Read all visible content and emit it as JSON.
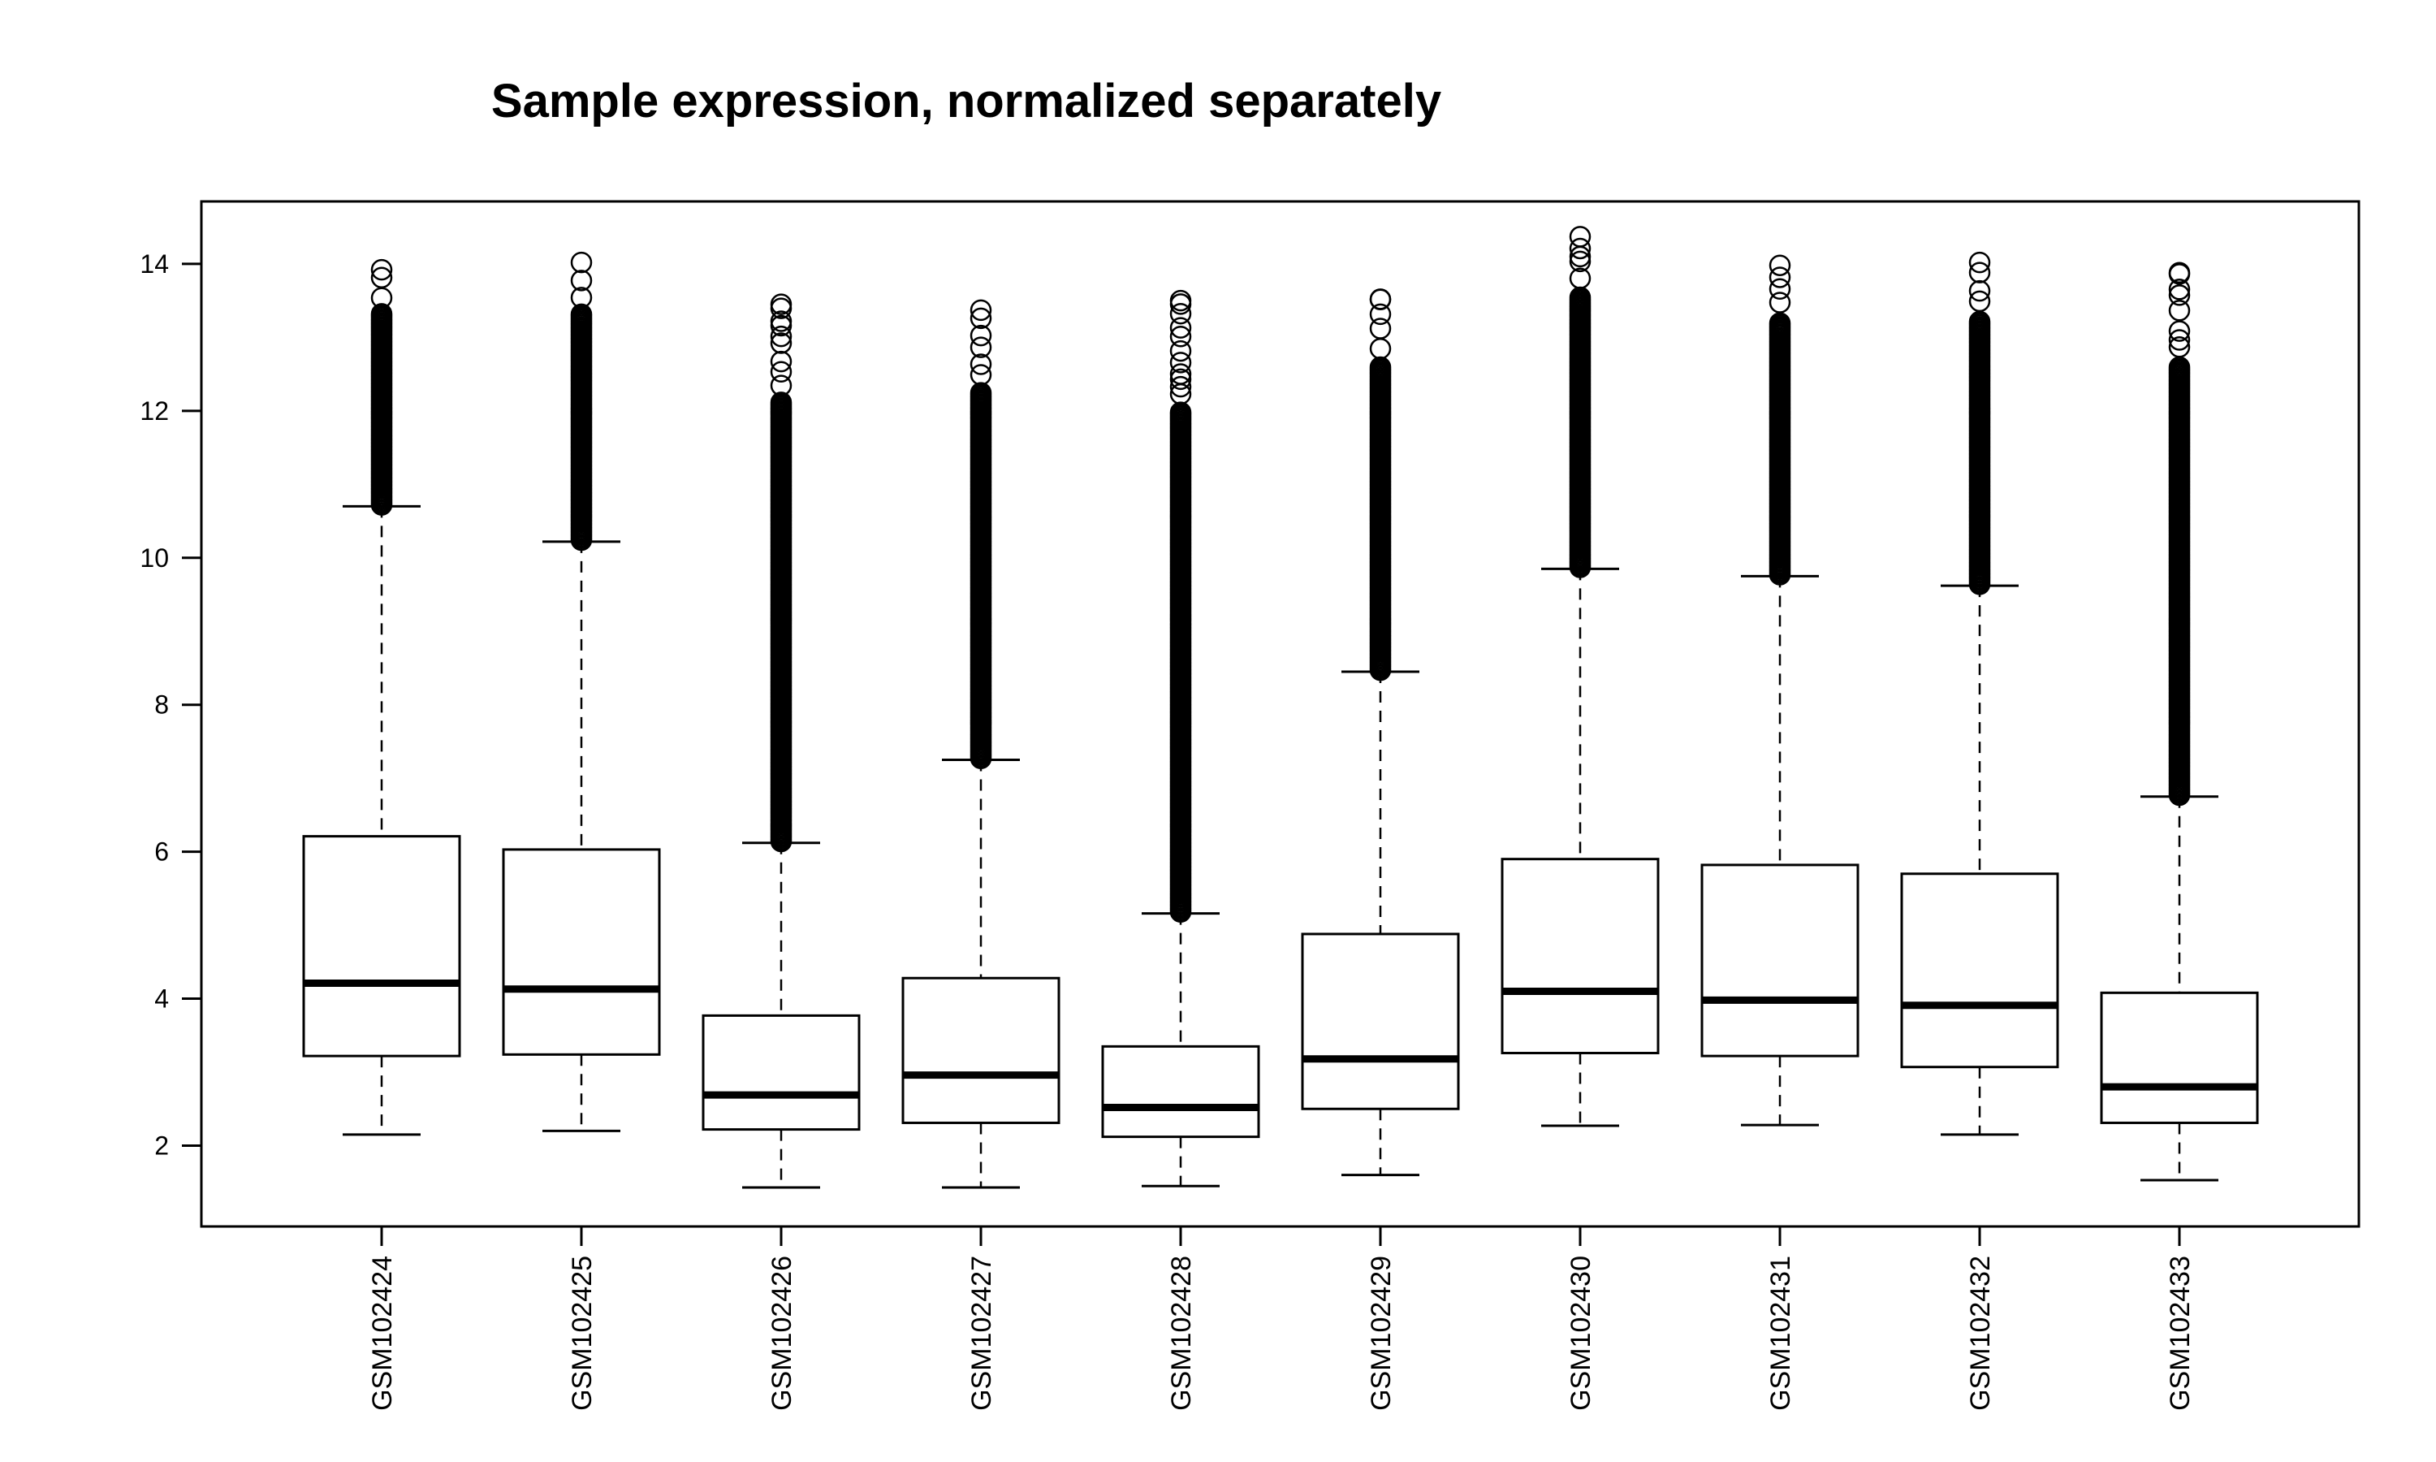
{
  "chart_data": {
    "type": "boxplot",
    "title": "Sample expression, normalized separately",
    "xlabel": "",
    "ylabel": "",
    "ylim": [
      0.9,
      14.85
    ],
    "yticks": [
      2,
      4,
      6,
      8,
      10,
      12,
      14
    ],
    "grid": false,
    "legend": "none",
    "categories": [
      "GSM102424",
      "GSM102425",
      "GSM102426",
      "GSM102427",
      "GSM102428",
      "GSM102429",
      "GSM102430",
      "GSM102431",
      "GSM102432",
      "GSM102433"
    ],
    "boxes": [
      {
        "lower_whisker": 2.15,
        "q1": 3.22,
        "median": 4.21,
        "q3": 6.21,
        "upper_whisker": 10.7,
        "outlier_max": 13.92
      },
      {
        "lower_whisker": 2.2,
        "q1": 3.24,
        "median": 4.13,
        "q3": 6.03,
        "upper_whisker": 10.22,
        "outlier_max": 14.02
      },
      {
        "lower_whisker": 1.43,
        "q1": 2.22,
        "median": 2.69,
        "q3": 3.77,
        "upper_whisker": 6.12,
        "outlier_max": 13.45
      },
      {
        "lower_whisker": 1.43,
        "q1": 2.31,
        "median": 2.96,
        "q3": 4.28,
        "upper_whisker": 7.25,
        "outlier_max": 13.37
      },
      {
        "lower_whisker": 1.45,
        "q1": 2.12,
        "median": 2.52,
        "q3": 3.35,
        "upper_whisker": 5.16,
        "outlier_max": 13.5
      },
      {
        "lower_whisker": 1.6,
        "q1": 2.5,
        "median": 3.18,
        "q3": 4.88,
        "upper_whisker": 8.45,
        "outlier_max": 13.52
      },
      {
        "lower_whisker": 2.27,
        "q1": 3.26,
        "median": 4.1,
        "q3": 5.9,
        "upper_whisker": 9.85,
        "outlier_max": 14.37
      },
      {
        "lower_whisker": 2.28,
        "q1": 3.22,
        "median": 3.98,
        "q3": 5.82,
        "upper_whisker": 9.75,
        "outlier_max": 13.98
      },
      {
        "lower_whisker": 2.15,
        "q1": 3.07,
        "median": 3.91,
        "q3": 5.7,
        "upper_whisker": 9.62,
        "outlier_max": 14.02
      },
      {
        "lower_whisker": 1.53,
        "q1": 2.31,
        "median": 2.8,
        "q3": 4.08,
        "upper_whisker": 6.75,
        "outlier_max": 13.88
      }
    ]
  }
}
